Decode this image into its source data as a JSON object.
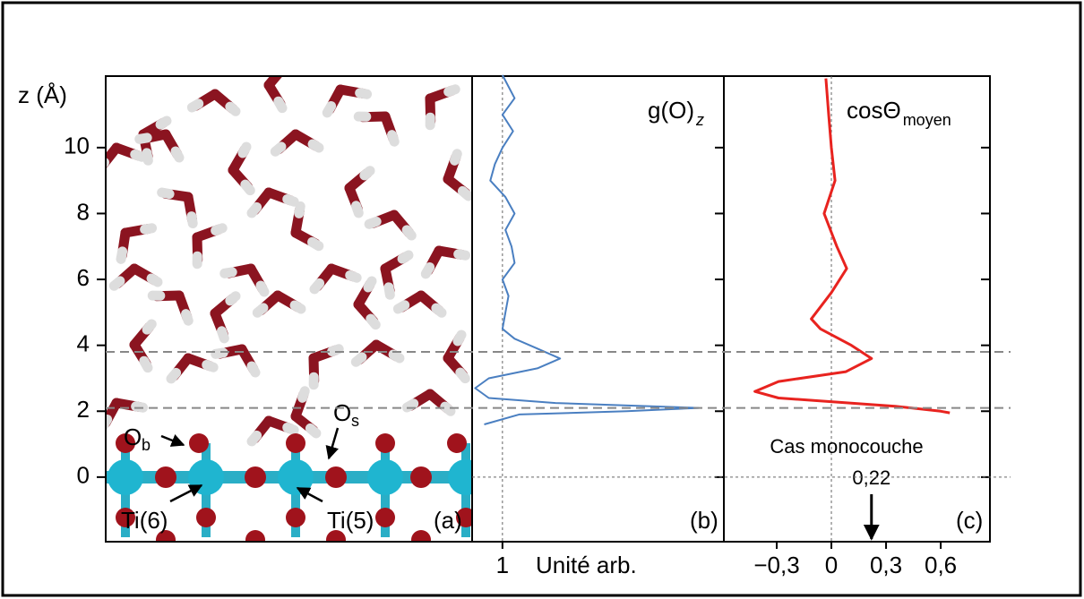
{
  "z_axis": {
    "label": "z (Å)",
    "lim": [
      -1.96,
      12.17
    ],
    "ticks": [
      0,
      2,
      4,
      6,
      8,
      10
    ]
  },
  "reference_lines": [
    2.1,
    3.8
  ],
  "hline": 0,
  "panel_a": {
    "panel_label": "(a)",
    "labels": [
      {
        "text": "O",
        "sub": "b"
      },
      {
        "text": "O",
        "sub": "s"
      },
      {
        "text": "Ti(6)"
      },
      {
        "text": "Ti(5)"
      }
    ]
  },
  "chart_data": [
    {
      "type": "line",
      "title": "g(O)",
      "title_sub": "z",
      "xlabel": "Unité arb.",
      "panel_label": "(b)",
      "xlim": [
        0,
        8.3
      ],
      "xticks": [
        1
      ],
      "vline": 1,
      "series": [
        {
          "color": "#4a7fc1",
          "y": [
            12.2,
            11.5,
            11,
            10.5,
            10,
            9.5,
            9,
            8.5,
            8,
            7.5,
            7,
            6.5,
            6,
            5.5,
            5,
            4.5,
            4.2,
            3.9,
            3.6,
            3.3,
            3.0,
            2.7,
            2.4,
            2.25,
            2.1,
            2.0,
            1.9,
            1.6
          ],
          "values": [
            1.0,
            1.4,
            1.0,
            1.35,
            1.0,
            0.75,
            0.6,
            1.1,
            1.4,
            1.1,
            1.3,
            1.4,
            1.0,
            1.2,
            1.1,
            1.0,
            1.4,
            2.15,
            2.9,
            2.15,
            0.55,
            0.1,
            0.55,
            2.75,
            7.47,
            5.1,
            1.55,
            0.4
          ]
        }
      ]
    },
    {
      "type": "line",
      "title": "cosΘ",
      "title_sub": "moyen",
      "panel_label": "(c)",
      "xlim": [
        -0.59,
        0.87
      ],
      "xticks": [
        {
          "value": -0.3,
          "label": "−0,3"
        },
        0,
        {
          "value": 0.3,
          "label": "0,3"
        },
        {
          "value": 0.6,
          "label": "0,6"
        }
      ],
      "vline": 0,
      "annotation": {
        "text": "Cas monocouche",
        "value": 0.22,
        "label": "0,22"
      },
      "series": [
        {
          "color": "#e8231f",
          "y": [
            12.1,
            11,
            10,
            9,
            8,
            7,
            6.33,
            5.6,
            4.8,
            4.5,
            4.0,
            3.6,
            3.2,
            2.9,
            2.6,
            2.4,
            2.15,
            2.0,
            1.95
          ],
          "values": [
            -0.03,
            -0.015,
            0,
            0.02,
            -0.04,
            0.03,
            0.084,
            0,
            -0.11,
            -0.06,
            0.11,
            0.22,
            0.08,
            -0.29,
            -0.42,
            -0.29,
            0.35,
            0.6,
            0.65
          ]
        }
      ]
    }
  ]
}
